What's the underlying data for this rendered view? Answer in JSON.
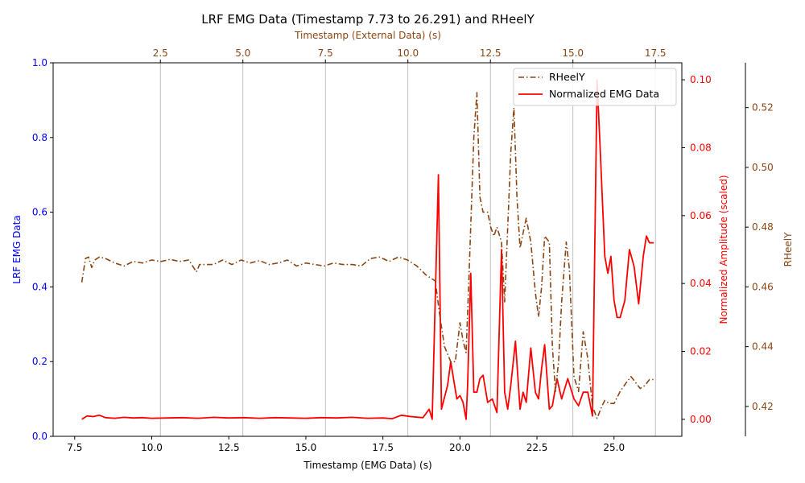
{
  "chart_data": {
    "type": "line",
    "title": "LRF EMG Data (Timestamp 7.73 to 26.291) and RHeelY",
    "colors": {
      "left_axis": "#0000ff",
      "emg": "#ff0000",
      "rheely": "#8b4513",
      "grid": "#b0b0b0"
    },
    "axes": {
      "x_bottom": {
        "label": "Timestamp (EMG Data) (s)",
        "range": [
          6.8,
          27.2
        ],
        "ticks": [
          7.5,
          10.0,
          12.5,
          15.0,
          17.5,
          20.0,
          22.5,
          25.0
        ],
        "tick_labels": [
          "7.5",
          "10.0",
          "12.5",
          "15.0",
          "17.5",
          "20.0",
          "22.5",
          "25.0"
        ]
      },
      "x_top": {
        "label": "Timestamp (External Data) (s)",
        "range": [
          -0.75,
          18.3
        ],
        "ticks": [
          2.5,
          5.0,
          7.5,
          10.0,
          12.5,
          15.0,
          17.5
        ],
        "tick_labels": [
          "2.5",
          "5.0",
          "7.5",
          "10.0",
          "12.5",
          "15.0",
          "17.5"
        ],
        "grid": true
      },
      "y_left": {
        "label": "LRF EMG Data",
        "range": [
          0.0,
          1.0
        ],
        "ticks": [
          0.0,
          0.2,
          0.4,
          0.6,
          0.8,
          1.0
        ],
        "tick_labels": [
          "0.0",
          "0.2",
          "0.4",
          "0.6",
          "0.8",
          "1.0"
        ]
      },
      "y_right1": {
        "label": "Normalized Amplitude (scaled)",
        "range": [
          -0.005,
          0.105
        ],
        "ticks": [
          0.0,
          0.02,
          0.04,
          0.06,
          0.08,
          0.1
        ],
        "tick_labels": [
          "0.00",
          "0.02",
          "0.04",
          "0.06",
          "0.08",
          "0.10"
        ]
      },
      "y_right2": {
        "label": "RHeelY",
        "range": [
          0.41,
          0.535
        ],
        "ticks": [
          0.42,
          0.44,
          0.46,
          0.48,
          0.5,
          0.52
        ],
        "tick_labels": [
          "0.42",
          "0.44",
          "0.46",
          "0.48",
          "0.50",
          "0.52"
        ]
      }
    },
    "legend": {
      "position": "top-right",
      "entries": [
        "RHeelY",
        "Normalized EMG Data"
      ]
    },
    "series": [
      {
        "name": "Normalized EMG Data",
        "axis": "y_right1",
        "style": "solid",
        "x": [
          7.73,
          7.9,
          8.1,
          8.3,
          8.5,
          8.8,
          9.1,
          9.4,
          9.7,
          10.0,
          10.5,
          11.0,
          11.5,
          12.0,
          12.5,
          13.0,
          13.5,
          14.0,
          14.5,
          15.0,
          15.5,
          16.0,
          16.5,
          17.0,
          17.5,
          17.8,
          18.1,
          18.4,
          18.8,
          19.0,
          19.1,
          19.3,
          19.4,
          19.6,
          19.7,
          19.9,
          20.0,
          20.1,
          20.2,
          20.25,
          20.35,
          20.45,
          20.55,
          20.65,
          20.75,
          20.9,
          21.05,
          21.2,
          21.35,
          21.45,
          21.55,
          21.65,
          21.8,
          21.95,
          22.05,
          22.15,
          22.3,
          22.45,
          22.55,
          22.65,
          22.75,
          22.9,
          23.0,
          23.15,
          23.3,
          23.5,
          23.7,
          23.85,
          24.0,
          24.15,
          24.3,
          24.45,
          24.55,
          24.7,
          24.8,
          24.9,
          25.0,
          25.1,
          25.2,
          25.35,
          25.5,
          25.65,
          25.8,
          25.95,
          26.05,
          26.15,
          26.291
        ],
        "values": [
          0.0,
          0.001,
          0.0008,
          0.0012,
          0.0005,
          0.0003,
          0.0006,
          0.0004,
          0.0005,
          0.0003,
          0.0004,
          0.0005,
          0.0003,
          0.0006,
          0.0004,
          0.0005,
          0.0003,
          0.0005,
          0.0004,
          0.0003,
          0.0005,
          0.0004,
          0.0006,
          0.0003,
          0.0004,
          0.0002,
          0.0012,
          0.0008,
          0.0005,
          0.003,
          0.0,
          0.072,
          0.003,
          0.01,
          0.017,
          0.006,
          0.007,
          0.005,
          0.0,
          0.01,
          0.043,
          0.008,
          0.008,
          0.012,
          0.013,
          0.005,
          0.006,
          0.002,
          0.05,
          0.008,
          0.003,
          0.01,
          0.023,
          0.003,
          0.008,
          0.005,
          0.021,
          0.008,
          0.006,
          0.015,
          0.022,
          0.003,
          0.004,
          0.012,
          0.006,
          0.012,
          0.006,
          0.004,
          0.008,
          0.008,
          0.001,
          0.1,
          0.08,
          0.048,
          0.043,
          0.048,
          0.035,
          0.03,
          0.03,
          0.035,
          0.05,
          0.045,
          0.034,
          0.048,
          0.054,
          0.052,
          0.052
        ]
      },
      {
        "name": "RHeelY",
        "axis": "y_right2",
        "style": "dashdot",
        "x": [
          7.73,
          7.85,
          7.95,
          8.05,
          8.15,
          8.3,
          8.5,
          8.8,
          9.1,
          9.4,
          9.7,
          10.0,
          10.3,
          10.6,
          10.9,
          11.2,
          11.45,
          11.55,
          11.7,
          12.0,
          12.3,
          12.6,
          12.9,
          13.2,
          13.5,
          13.8,
          14.1,
          14.4,
          14.7,
          15.0,
          15.3,
          15.6,
          15.9,
          16.2,
          16.5,
          16.8,
          17.1,
          17.4,
          17.7,
          18.0,
          18.3,
          18.6,
          18.9,
          19.2,
          19.35,
          19.5,
          19.7,
          19.85,
          20.0,
          20.1,
          20.2,
          20.3,
          20.45,
          20.55,
          20.65,
          20.75,
          20.9,
          21.0,
          21.1,
          21.2,
          21.35,
          21.45,
          21.55,
          21.65,
          21.75,
          21.85,
          21.95,
          22.05,
          22.15,
          22.3,
          22.45,
          22.55,
          22.65,
          22.75,
          22.9,
          23.0,
          23.1,
          23.2,
          23.3,
          23.45,
          23.55,
          23.7,
          23.85,
          24.0,
          24.15,
          24.3,
          24.45,
          24.6,
          24.7,
          24.85,
          25.0,
          25.2,
          25.4,
          25.55,
          25.7,
          25.85,
          26.0,
          26.15,
          26.291
        ],
        "values": [
          0.4615,
          0.4695,
          0.47,
          0.4665,
          0.469,
          0.47,
          0.4695,
          0.468,
          0.467,
          0.4685,
          0.468,
          0.469,
          0.4685,
          0.4692,
          0.4685,
          0.469,
          0.465,
          0.4675,
          0.4675,
          0.4675,
          0.469,
          0.4675,
          0.469,
          0.468,
          0.4688,
          0.4675,
          0.468,
          0.469,
          0.467,
          0.468,
          0.4675,
          0.467,
          0.468,
          0.4675,
          0.4675,
          0.467,
          0.4695,
          0.47,
          0.4685,
          0.47,
          0.469,
          0.467,
          0.464,
          0.462,
          0.45,
          0.44,
          0.435,
          0.435,
          0.448,
          0.442,
          0.438,
          0.465,
          0.51,
          0.525,
          0.49,
          0.485,
          0.485,
          0.48,
          0.477,
          0.48,
          0.475,
          0.455,
          0.48,
          0.505,
          0.52,
          0.49,
          0.473,
          0.478,
          0.483,
          0.475,
          0.458,
          0.45,
          0.46,
          0.477,
          0.475,
          0.44,
          0.425,
          0.435,
          0.455,
          0.475,
          0.466,
          0.43,
          0.425,
          0.445,
          0.436,
          0.42,
          0.416,
          0.42,
          0.422,
          0.421,
          0.421,
          0.425,
          0.428,
          0.43,
          0.428,
          0.426,
          0.427,
          0.429,
          0.429
        ]
      }
    ]
  }
}
